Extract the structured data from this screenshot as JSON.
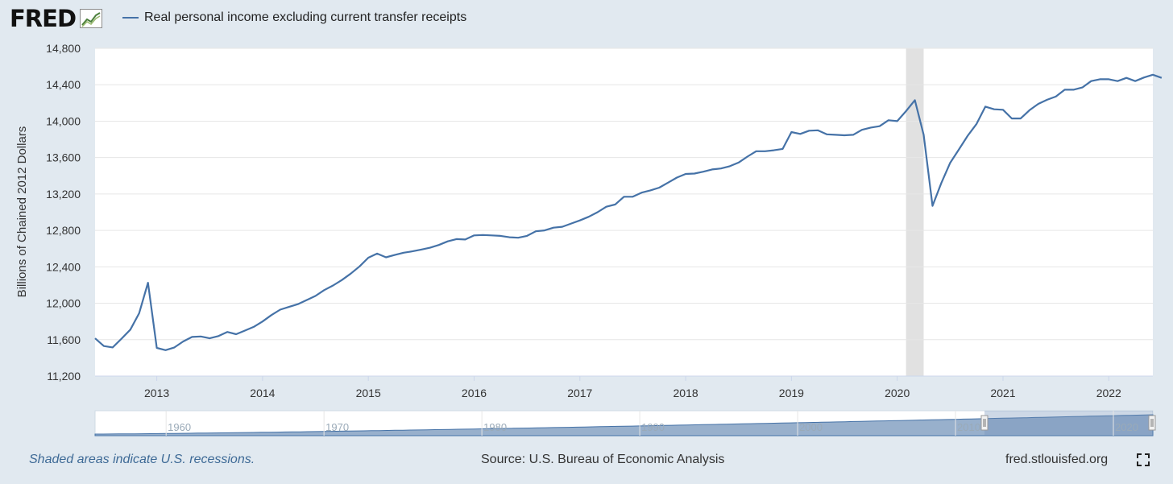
{
  "header": {
    "logo_text": "FRED",
    "legend_label": "Real personal income excluding current transfer receipts",
    "series_color": "#4572a7"
  },
  "chart_data": {
    "type": "line",
    "title": "Real personal income excluding current transfer receipts",
    "ylabel": "Billions of Chained 2012 Dollars",
    "xlabel": "",
    "ylim": [
      11200,
      14800
    ],
    "xlim": [
      2012.4167,
      2022.4167
    ],
    "y_ticks": [
      "11,200",
      "11,600",
      "12,000",
      "12,400",
      "12,800",
      "13,200",
      "13,600",
      "14,000",
      "14,400",
      "14,800"
    ],
    "y_tick_values": [
      11200,
      11600,
      12000,
      12400,
      12800,
      13200,
      13600,
      14000,
      14400,
      14800
    ],
    "x_ticks": [
      "2013",
      "2014",
      "2015",
      "2016",
      "2017",
      "2018",
      "2019",
      "2020",
      "2021",
      "2022"
    ],
    "recessions": [
      [
        2020.0833,
        2020.25
      ]
    ],
    "grid": true,
    "series": [
      {
        "name": "Real personal income excluding current transfer receipts",
        "start": 2012.4167,
        "step_months": 1,
        "values": [
          11615,
          11530,
          11515,
          11610,
          11710,
          11890,
          12225,
          11510,
          11485,
          11515,
          11580,
          11630,
          11635,
          11615,
          11640,
          11685,
          11660,
          11700,
          11740,
          11800,
          11870,
          11930,
          11960,
          11990,
          12035,
          12080,
          12145,
          12195,
          12255,
          12325,
          12405,
          12500,
          12545,
          12505,
          12530,
          12555,
          12570,
          12590,
          12610,
          12640,
          12680,
          12705,
          12700,
          12745,
          12750,
          12745,
          12740,
          12725,
          12720,
          12740,
          12790,
          12800,
          12830,
          12840,
          12875,
          12910,
          12950,
          13000,
          13060,
          13085,
          13170,
          13170,
          13215,
          13240,
          13270,
          13325,
          13380,
          13420,
          13425,
          13445,
          13470,
          13480,
          13505,
          13545,
          13610,
          13670,
          13670,
          13680,
          13695,
          13880,
          13860,
          13895,
          13900,
          13855,
          13850,
          13845,
          13850,
          13905,
          13930,
          13945,
          14010,
          14000,
          14110,
          14230,
          13850,
          13070,
          13320,
          13540,
          13690,
          13840,
          13970,
          14160,
          14130,
          14125,
          14030,
          14030,
          14120,
          14190,
          14235,
          14270,
          14345,
          14345,
          14370,
          14440,
          14460,
          14460,
          14440,
          14475,
          14440,
          14480,
          14510,
          14475
        ]
      }
    ],
    "navigator": {
      "x_ticks": [
        "1960",
        "1970",
        "1980",
        "1990",
        "2000",
        "2010",
        "2020"
      ]
    }
  },
  "footer": {
    "note": "Shaded areas indicate U.S. recessions.",
    "source": "Source: U.S. Bureau of Economic Analysis",
    "site": "fred.stlouisfed.org"
  }
}
